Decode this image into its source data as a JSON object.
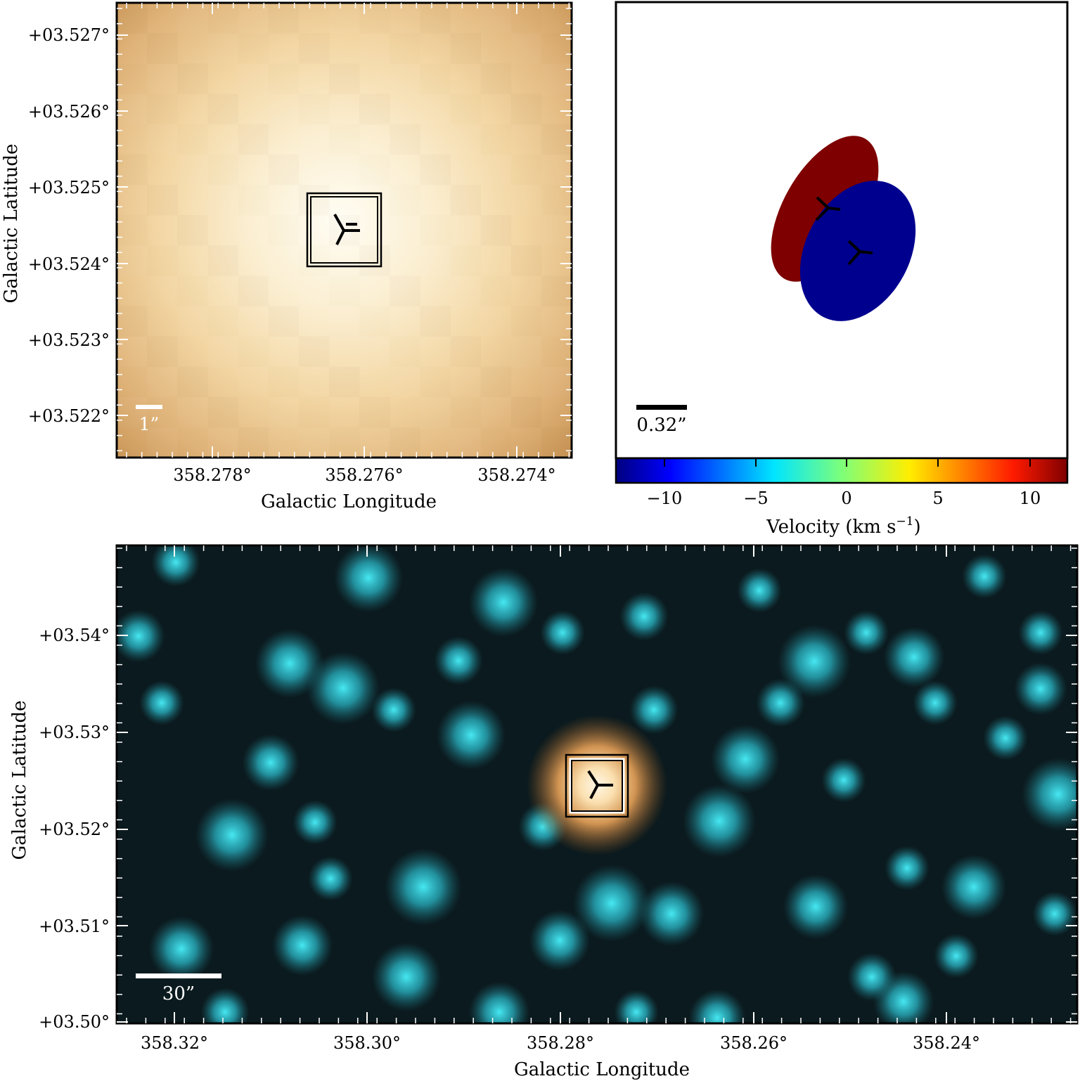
{
  "top_left": {
    "ylabel": "Galactic Latitude",
    "xlabel": "Galactic Longitude",
    "yticks": [
      "+03.527°",
      "+03.526°",
      "+03.525°",
      "+03.524°",
      "+03.523°",
      "+03.522°"
    ],
    "xticks": [
      "358.278°",
      "358.276°",
      "358.274°"
    ],
    "scalebar": "1”",
    "colors": {
      "bright": "#fffdf2",
      "mid": "#f3d7a4",
      "dark": "#c99556"
    }
  },
  "top_right": {
    "scalebar": "0.32”",
    "colorbar": {
      "label": "Velocity (km s",
      "label_exp": "−1",
      "label_close": ")",
      "ticks": [
        "−10",
        "−5",
        "0",
        "5",
        "10"
      ],
      "range": [
        -12.5,
        12.5
      ]
    },
    "ellipses": [
      {
        "name": "red-component",
        "color": "#7e0000"
      },
      {
        "name": "blue-component",
        "color": "#00008e"
      }
    ]
  },
  "bottom": {
    "ylabel": "Galactic Latitude",
    "xlabel": "Galactic Longitude",
    "yticks": [
      "+03.54°",
      "+03.53°",
      "+03.52°",
      "+03.51°",
      "+03.50°"
    ],
    "xticks": [
      "358.32°",
      "358.30°",
      "358.28°",
      "358.26°",
      "358.24°"
    ],
    "scalebar": "30”",
    "colors": {
      "star": "#37d6e6",
      "background": "#0b1a1e",
      "source": "#f1b36a"
    }
  }
}
